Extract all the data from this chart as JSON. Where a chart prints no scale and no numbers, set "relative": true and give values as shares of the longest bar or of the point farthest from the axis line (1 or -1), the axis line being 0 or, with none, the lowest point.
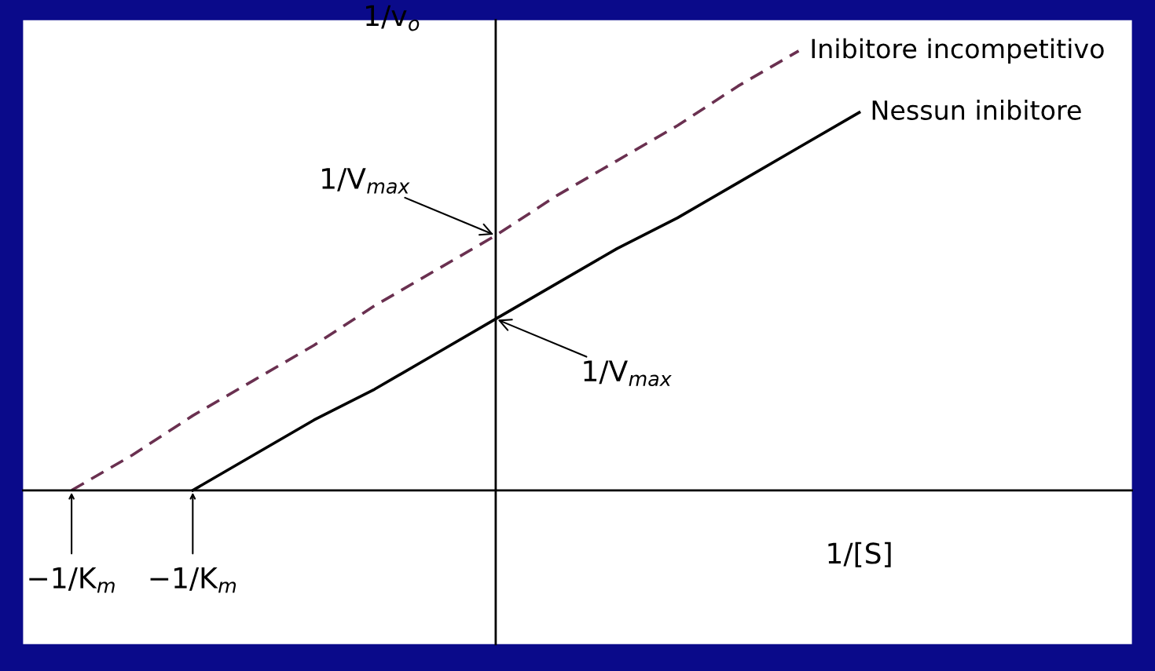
{
  "chart_data": {
    "type": "line",
    "relative": true,
    "xlabel": "1/[S]",
    "ylabel": "1/v$_{o}$",
    "categories": [
      "−1/K$_{m}$",
      null,
      "−1/K$_{m}$",
      null,
      null,
      null,
      null,
      null,
      null,
      null,
      null,
      null,
      null,
      null
    ],
    "series": [
      {
        "name": "Inibitore incompetitivo",
        "color": "#6a3050",
        "line_style": "dashed",
        "values": [
          0,
          0.08,
          0.17,
          0.25,
          0.33,
          0.42,
          0.5,
          0.58,
          0.67,
          0.75,
          0.83,
          0.92,
          1,
          null
        ]
      },
      {
        "name": "Nessun inibitore",
        "color": "#000000",
        "line_style": "solid",
        "values": [
          null,
          null,
          0,
          0.08,
          0.16,
          0.23,
          0.31,
          0.39,
          0.47,
          0.55,
          0.62,
          0.7,
          0.78,
          0.86
        ]
      }
    ],
    "annotations": [
      "1/V$_{max}$",
      "1/V$_{max}$"
    ]
  }
}
